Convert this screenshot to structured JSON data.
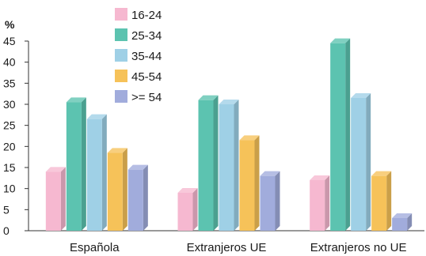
{
  "chart_data": {
    "type": "bar",
    "y_unit": "%",
    "categories": [
      "Española",
      "Extranjeros UE",
      "Extranjeros no UE"
    ],
    "series": [
      {
        "name": "16-24",
        "color": "#f6b8d0",
        "values": [
          14,
          9,
          12
        ]
      },
      {
        "name": "25-34",
        "color": "#5cc3b0",
        "values": [
          30.5,
          31,
          44.5
        ]
      },
      {
        "name": "35-44",
        "color": "#9fd0e6",
        "values": [
          26.5,
          30,
          31.5
        ]
      },
      {
        "name": "45-54",
        "color": "#f6c259",
        "values": [
          18.5,
          21.5,
          13
        ]
      },
      {
        "name": ">= 54",
        "color": "#a1acdc",
        "values": [
          14.5,
          13,
          3
        ]
      }
    ],
    "ylim": [
      0,
      45
    ],
    "yticks": [
      0,
      5,
      10,
      15,
      20,
      25,
      30,
      35,
      40,
      45
    ],
    "legend_position": "top-center",
    "grid": false,
    "style": "3d-bars"
  }
}
